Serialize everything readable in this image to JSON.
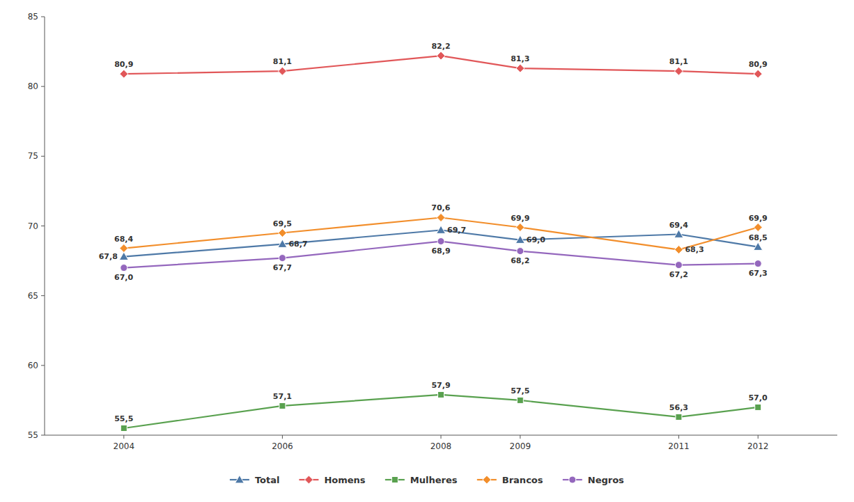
{
  "chart_data": {
    "type": "line",
    "x": [
      2004,
      2006,
      2008,
      2009,
      2011,
      2012
    ],
    "xlim": [
      2003,
      2013
    ],
    "xticks": [
      2004,
      2006,
      2008,
      2009,
      2011,
      2012
    ],
    "ylim": [
      55,
      85
    ],
    "yticks": [
      55,
      60,
      65,
      70,
      75,
      80,
      85
    ],
    "grid": false,
    "legend": "bottom",
    "data_labels": true,
    "series": [
      {
        "name": "Total",
        "color": "#4e79a7",
        "marker": "triangle",
        "values": [
          67.8,
          68.7,
          69.7,
          69.0,
          69.4,
          68.5
        ],
        "value_labels": [
          "67,8",
          "68,7",
          "69,7",
          "69,0",
          "69,4",
          "68,5"
        ]
      },
      {
        "name": "Homens",
        "color": "#e15759",
        "marker": "diamond",
        "values": [
          80.9,
          81.1,
          82.2,
          81.3,
          81.1,
          80.9
        ],
        "value_labels": [
          "80,9",
          "81,1",
          "82,2",
          "81,3",
          "81,1",
          "80,9"
        ]
      },
      {
        "name": "Mulheres",
        "color": "#59a14f",
        "marker": "square",
        "values": [
          55.5,
          57.1,
          57.9,
          57.5,
          56.3,
          57.0
        ],
        "value_labels": [
          "55,5",
          "57,1",
          "57,9",
          "57,5",
          "56,3",
          "57,0"
        ]
      },
      {
        "name": "Brancos",
        "color": "#f28e2b",
        "marker": "diamond",
        "values": [
          68.4,
          69.5,
          70.6,
          69.9,
          68.3,
          69.9
        ],
        "value_labels": [
          "68,4",
          "69,5",
          "70,6",
          "69,9",
          "68,3",
          "69,9"
        ]
      },
      {
        "name": "Negros",
        "color": "#9467bd",
        "marker": "circle",
        "values": [
          67.0,
          67.7,
          68.9,
          68.2,
          67.2,
          67.3
        ],
        "value_labels": [
          "67,0",
          "67,7",
          "68,9",
          "68,2",
          "67,2",
          "67,3"
        ]
      }
    ]
  }
}
